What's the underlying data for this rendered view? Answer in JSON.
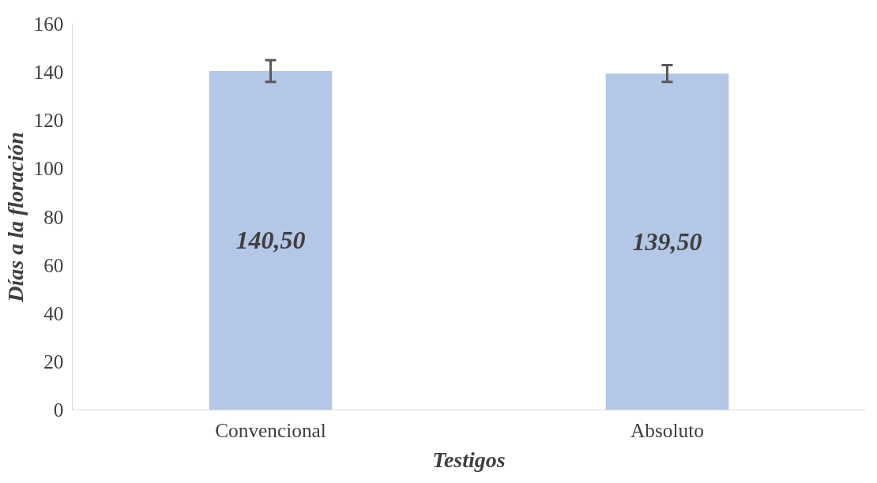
{
  "chart_data": {
    "type": "bar",
    "xlabel": "Testigos",
    "ylabel": "Días a la floración",
    "categories": [
      "Convencional",
      "Absoluto"
    ],
    "series": [
      {
        "color": "#b4c7e7",
        "values": [
          140.5,
          139.5
        ],
        "errors": [
          4.5,
          3.5
        ],
        "value_labels": [
          "140,50",
          "139,50"
        ]
      }
    ],
    "ylim": [
      0,
      160
    ],
    "yticks": [
      0,
      20,
      40,
      60,
      80,
      100,
      120,
      140,
      160
    ],
    "grid": false
  }
}
